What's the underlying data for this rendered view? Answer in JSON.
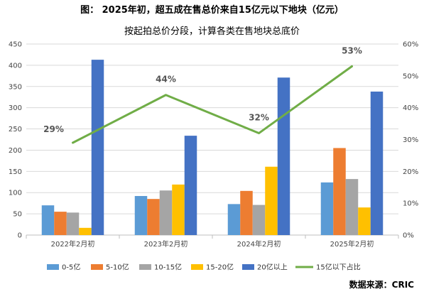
{
  "header": {
    "title": "图：  2025年初，超五成在售总价来自15亿元以下地块（亿元）",
    "subtitle": "按起拍总价分段，计算各类在售地块总底价",
    "source": "数据来源：CRIC"
  },
  "chart_data": {
    "type": "bar",
    "categories": [
      "2022年2月初",
      "2023年2月初",
      "2024年2月初",
      "2025年2月初"
    ],
    "series": [
      {
        "name": "0-5亿",
        "values": [
          70,
          92,
          73,
          124
        ],
        "color": "#5b9bd5"
      },
      {
        "name": "5-10亿",
        "values": [
          55,
          85,
          104,
          205
        ],
        "color": "#ed7d31"
      },
      {
        "name": "10-15亿",
        "values": [
          53,
          105,
          71,
          132
        ],
        "color": "#a5a5a5"
      },
      {
        "name": "15-20亿",
        "values": [
          17,
          119,
          161,
          65
        ],
        "color": "#ffc000"
      },
      {
        "name": "20亿以上",
        "values": [
          413,
          234,
          371,
          338
        ],
        "color": "#4472c4"
      }
    ],
    "line_series": {
      "name": "15亿以下占比",
      "values": [
        29,
        44,
        32,
        53
      ],
      "labels": [
        "29%",
        "44%",
        "32%",
        "53%"
      ],
      "color": "#70ad47",
      "axis": "right"
    },
    "ylim": [
      0,
      450
    ],
    "yticks": [
      "0",
      "50",
      "100",
      "150",
      "200",
      "250",
      "300",
      "350",
      "400",
      "450"
    ],
    "y2lim": [
      0,
      60
    ],
    "y2ticks": [
      "0%",
      "10%",
      "20%",
      "30%",
      "40%",
      "50%",
      "60%"
    ],
    "grid": true,
    "legend_position": "bottom"
  }
}
